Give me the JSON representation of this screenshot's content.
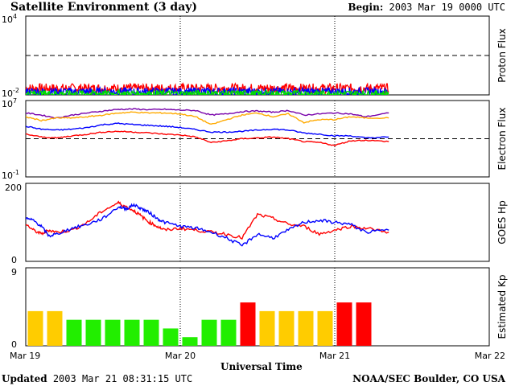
{
  "header": {
    "title": "Satellite Environment (3 day)",
    "begin_label": "Begin:",
    "begin_value": "2003 Mar 19 0000 UTC"
  },
  "footer": {
    "updated_label": "Updated",
    "updated_value": "2003 Mar 21 08:31:15 UTC",
    "credit": "NOAA/SEC Boulder, CO USA",
    "xlabel": "Universal Time"
  },
  "x_axis": {
    "ticks": [
      "Mar 19",
      "Mar 20",
      "Mar 21",
      "Mar 22"
    ],
    "range_days": [
      0,
      3
    ],
    "data_end_day": 2.35
  },
  "chart_data": [
    {
      "type": "line",
      "name": "proton-flux",
      "ylabel": "Proton Flux",
      "scale": "log",
      "ylim_exp": [
        -2,
        4
      ],
      "tick_labels": [
        {
          "base": "10",
          "exp": "4"
        },
        {
          "base": "10",
          "exp": "-2"
        }
      ],
      "threshold": 10,
      "series": [
        {
          "color": "#ff0000",
          "level": 0.032,
          "noise": 0.12
        },
        {
          "color": "#0000ff",
          "level": 0.018,
          "noise": 0.1
        },
        {
          "color": "#00dd00",
          "level": 0.013,
          "noise": 0.08
        }
      ]
    },
    {
      "type": "line",
      "name": "electron-flux",
      "ylabel": "Electron Flux",
      "scale": "log",
      "ylim_exp": [
        -1,
        7
      ],
      "tick_labels": [
        {
          "base": "10",
          "exp": "7"
        },
        {
          "base": "10",
          "exp": "-1"
        }
      ],
      "threshold": 1000,
      "series": [
        {
          "color": "#7700aa",
          "x": [
            0,
            0.1,
            0.2,
            0.3,
            0.4,
            0.5,
            0.6,
            0.7,
            0.8,
            0.9,
            1,
            1.1,
            1.2,
            1.3,
            1.4,
            1.5,
            1.6,
            1.7,
            1.8,
            1.9,
            2,
            2.1,
            2.2,
            2.35
          ],
          "y": [
            500000.0,
            300000.0,
            150000.0,
            300000.0,
            500000.0,
            800000.0,
            1200000.0,
            1300000.0,
            1100000.0,
            1200000.0,
            1000000.0,
            900000.0,
            300000.0,
            400000.0,
            700000.0,
            800000.0,
            600000.0,
            900000.0,
            300000.0,
            400000.0,
            500000.0,
            400000.0,
            200000.0,
            500000.0
          ]
        },
        {
          "color": "#ffaa00",
          "x": [
            0,
            0.1,
            0.2,
            0.3,
            0.4,
            0.5,
            0.6,
            0.7,
            0.8,
            0.9,
            1,
            1.1,
            1.2,
            1.3,
            1.4,
            1.5,
            1.6,
            1.7,
            1.8,
            1.9,
            2,
            2.1,
            2.2,
            2.35
          ],
          "y": [
            200000.0,
            80000.0,
            150000.0,
            150000.0,
            200000.0,
            300000.0,
            500000.0,
            600000.0,
            500000.0,
            500000.0,
            400000.0,
            200000.0,
            30000.0,
            100000.0,
            300000.0,
            500000.0,
            200000.0,
            400000.0,
            50000.0,
            100000.0,
            100000.0,
            200000.0,
            150000.0,
            150000.0
          ]
        },
        {
          "color": "#0000ff",
          "x": [
            0,
            0.1,
            0.2,
            0.3,
            0.4,
            0.5,
            0.6,
            0.7,
            0.8,
            0.9,
            1,
            1.1,
            1.2,
            1.3,
            1.4,
            1.5,
            1.6,
            1.7,
            1.8,
            1.9,
            2,
            2.1,
            2.2,
            2.35
          ],
          "y": [
            20000.0,
            10000.0,
            8000.0,
            10000.0,
            15000.0,
            30000.0,
            40000.0,
            30000.0,
            25000.0,
            20000.0,
            15000.0,
            9000.0,
            5000.0,
            5000.0,
            6000.0,
            8000.0,
            10000.0,
            8000.0,
            4000.0,
            3000.0,
            2000.0,
            2000.0,
            1200.0,
            1500.0
          ]
        },
        {
          "color": "#ff0000",
          "x": [
            0,
            0.1,
            0.2,
            0.3,
            0.4,
            0.5,
            0.6,
            0.7,
            0.8,
            0.9,
            1,
            1.1,
            1.2,
            1.3,
            1.4,
            1.5,
            1.6,
            1.7,
            1.8,
            1.9,
            2,
            2.1,
            2.2,
            2.35
          ],
          "y": [
            3000.0,
            1500.0,
            1200.0,
            2000.0,
            3000.0,
            5000.0,
            6000.0,
            5000.0,
            4000.0,
            3000.0,
            2500.0,
            1500.0,
            400,
            600,
            1000.0,
            1200.0,
            1500.0,
            1000.0,
            500,
            400,
            200,
            600,
            700,
            500
          ]
        }
      ]
    },
    {
      "type": "line",
      "name": "goes-hp",
      "ylabel": "GOES Hp",
      "scale": "linear",
      "ylim": [
        0,
        200
      ],
      "tick_labels": [
        "200",
        "0"
      ],
      "series": [
        {
          "color": "#ff0000",
          "x": [
            0,
            0.05,
            0.1,
            0.15,
            0.2,
            0.3,
            0.4,
            0.5,
            0.6,
            0.65,
            0.7,
            0.75,
            0.8,
            0.85,
            0.9,
            1,
            1.1,
            1.2,
            1.3,
            1.4,
            1.5,
            1.6,
            1.7,
            1.8,
            1.9,
            2,
            2.1,
            2.2,
            2.35
          ],
          "y": [
            95,
            80,
            70,
            80,
            75,
            80,
            100,
            130,
            150,
            140,
            130,
            115,
            100,
            90,
            80,
            85,
            80,
            75,
            70,
            60,
            120,
            110,
            95,
            90,
            70,
            80,
            90,
            85,
            75
          ]
        },
        {
          "color": "#0000ff",
          "x": [
            0,
            0.05,
            0.1,
            0.15,
            0.2,
            0.3,
            0.4,
            0.5,
            0.6,
            0.65,
            0.7,
            0.75,
            0.8,
            0.85,
            0.9,
            1,
            1.1,
            1.2,
            1.3,
            1.4,
            1.5,
            1.6,
            1.7,
            1.8,
            1.9,
            2,
            2.1,
            2.2,
            2.35
          ],
          "y": [
            110,
            105,
            90,
            65,
            70,
            85,
            95,
            110,
            140,
            135,
            145,
            135,
            125,
            110,
            100,
            90,
            85,
            75,
            60,
            40,
            70,
            60,
            80,
            100,
            105,
            100,
            95,
            75,
            80
          ]
        }
      ]
    },
    {
      "type": "bar",
      "name": "estimated-kp",
      "ylabel": "Estimated Kp",
      "ylim": [
        0,
        9
      ],
      "tick_labels": [
        "9",
        "0"
      ],
      "values": [
        4,
        4,
        3,
        3,
        3,
        3,
        3,
        2,
        1,
        3,
        3,
        5,
        4,
        4,
        4,
        4,
        5,
        5
      ],
      "colors": [
        "#ffcc00",
        "#ffcc00",
        "#22ee00",
        "#22ee00",
        "#22ee00",
        "#22ee00",
        "#22ee00",
        "#22ee00",
        "#22ee00",
        "#22ee00",
        "#22ee00",
        "#ff0000",
        "#ffcc00",
        "#ffcc00",
        "#ffcc00",
        "#ffcc00",
        "#ff0000",
        "#ff0000"
      ]
    }
  ]
}
